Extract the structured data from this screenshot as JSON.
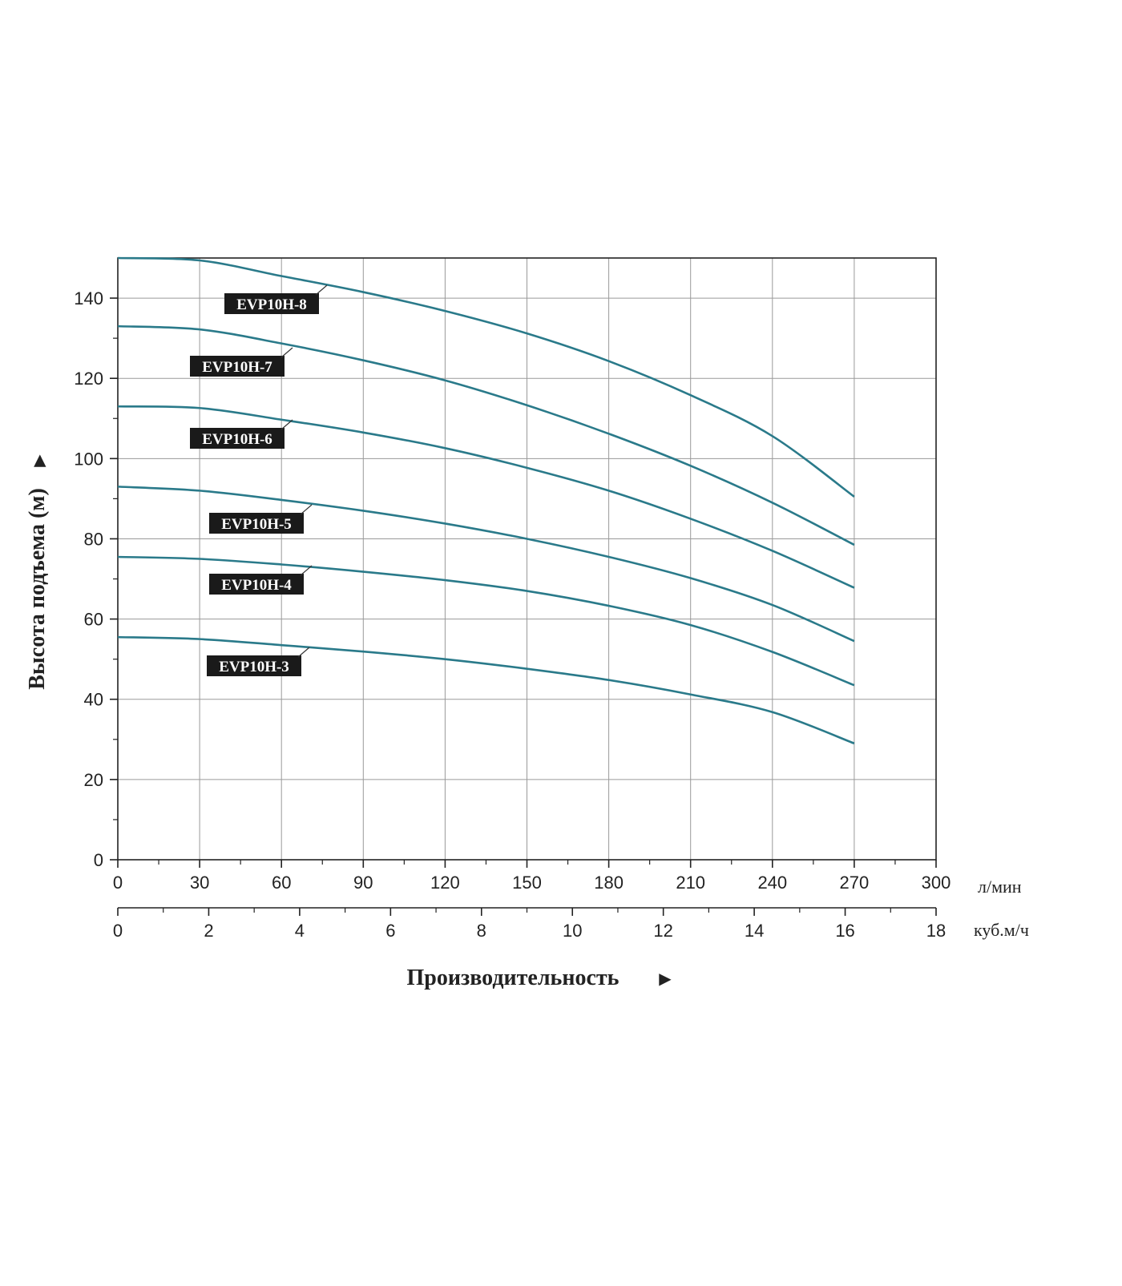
{
  "chart_data": {
    "type": "line",
    "ylabel": "Высота подъема (м)",
    "xlabel": "Производительность",
    "x_units_primary": "л/мин",
    "x_units_secondary": "куб.м/ч",
    "xlim": [
      0,
      300
    ],
    "x_ticks": [
      0,
      30,
      60,
      90,
      120,
      150,
      180,
      210,
      240,
      270,
      300
    ],
    "x2lim": [
      0,
      18
    ],
    "x2_ticks": [
      0,
      2,
      4,
      6,
      8,
      10,
      12,
      14,
      16,
      18
    ],
    "ylim": [
      0,
      150
    ],
    "y_ticks": [
      0,
      20,
      40,
      60,
      80,
      100,
      120,
      140
    ],
    "grid": true,
    "series": [
      {
        "name": "EVP10H-8",
        "x": [
          0,
          30,
          60,
          90,
          120,
          150,
          180,
          210,
          240,
          270
        ],
        "y": [
          150,
          149.4,
          145.5,
          141.5,
          136.8,
          131.2,
          124.3,
          115.8,
          105.6,
          90.5
        ]
      },
      {
        "name": "EVP10H-7",
        "x": [
          0,
          30,
          60,
          90,
          120,
          150,
          180,
          210,
          240,
          270
        ],
        "y": [
          133,
          132.2,
          128.7,
          124.5,
          119.5,
          113.3,
          106.2,
          98.2,
          89,
          78.5
        ]
      },
      {
        "name": "EVP10H-6",
        "x": [
          0,
          30,
          60,
          90,
          120,
          150,
          180,
          210,
          240,
          270
        ],
        "y": [
          113,
          112.6,
          109.7,
          106.5,
          102.6,
          97.7,
          92,
          85,
          77,
          67.8
        ]
      },
      {
        "name": "EVP10H-5",
        "x": [
          0,
          30,
          60,
          90,
          120,
          150,
          180,
          210,
          240,
          270
        ],
        "y": [
          93,
          92,
          89.7,
          87,
          83.8,
          80,
          75.5,
          70.2,
          63.5,
          54.5
        ]
      },
      {
        "name": "EVP10H-4",
        "x": [
          0,
          30,
          60,
          90,
          120,
          150,
          180,
          210,
          240,
          270
        ],
        "y": [
          75.5,
          75,
          73.6,
          71.8,
          69.7,
          67,
          63.3,
          58.5,
          51.8,
          43.5
        ]
      },
      {
        "name": "EVP10H-3",
        "x": [
          0,
          30,
          60,
          90,
          120,
          150,
          180,
          210,
          240,
          270
        ],
        "y": [
          55.5,
          55,
          53.5,
          51.9,
          50,
          47.6,
          44.8,
          41.2,
          36.8,
          29
        ]
      }
    ]
  },
  "colors": {
    "curve": "#2a7a8a",
    "grid": "#9a9a9a",
    "axis": "#222222",
    "label_bg": "#1a1a1a",
    "label_text": "#ffffff"
  }
}
